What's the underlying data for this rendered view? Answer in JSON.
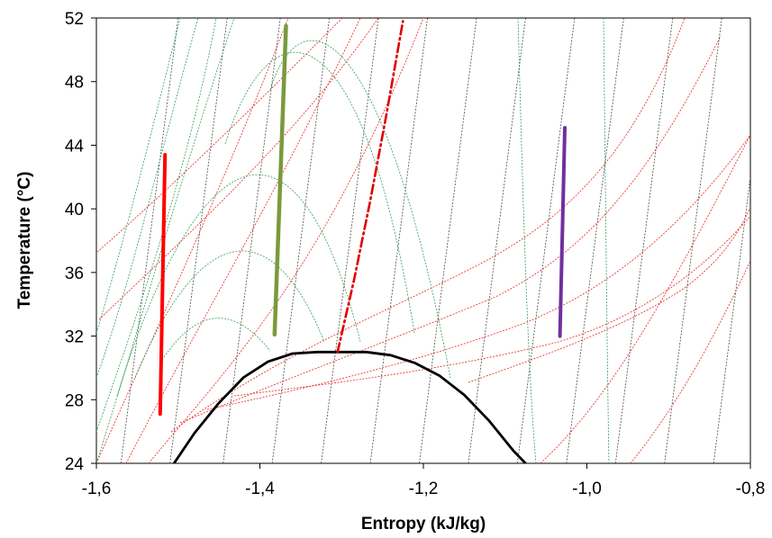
{
  "chart_data": {
    "type": "line",
    "title": "",
    "xlabel": "Entropy (kJ/kg)",
    "ylabel": "Temperature (°C)",
    "xlim": [
      -1.6,
      -0.8
    ],
    "ylim": [
      24,
      52
    ],
    "x_ticks": [
      -1.6,
      -1.4,
      -1.2,
      -1.0,
      -0.8
    ],
    "x_tick_labels": [
      "-1,6",
      "-1,4",
      "-1,2",
      "-1,0",
      "-0,8"
    ],
    "y_ticks": [
      24,
      28,
      32,
      36,
      40,
      44,
      48,
      52
    ],
    "y_tick_labels": [
      "24",
      "28",
      "32",
      "36",
      "40",
      "44",
      "48",
      "52"
    ],
    "grid": false,
    "legend": "none",
    "colors": {
      "dome": "#000000",
      "isotherm_red": "#e8251f",
      "isochore_green": "#2e9e55",
      "isenthalp_black": "#333333",
      "red_line": "#ff0000",
      "green_line": "#7a9a3c",
      "purple_line": "#7030a0",
      "critical_dashdot": "#e00000"
    },
    "series": [
      {
        "role": "saturation-dome",
        "x": [
          -1.505,
          -1.48,
          -1.45,
          -1.42,
          -1.39,
          -1.36,
          -1.33,
          -1.3,
          -1.27,
          -1.24,
          -1.21,
          -1.18,
          -1.15,
          -1.12,
          -1.09,
          -1.075
        ],
        "y": [
          24.0,
          25.9,
          27.8,
          29.4,
          30.4,
          30.9,
          31.0,
          31.0,
          31.0,
          30.8,
          30.3,
          29.5,
          28.3,
          26.7,
          24.8,
          24.0
        ]
      },
      {
        "role": "red-line",
        "x": [
          -1.522,
          -1.516
        ],
        "y": [
          27.1,
          43.4
        ]
      },
      {
        "role": "green-line",
        "x": [
          -1.382,
          -1.368
        ],
        "y": [
          32.1,
          51.5
        ]
      },
      {
        "role": "purple-line",
        "x": [
          -1.033,
          -1.027
        ],
        "y": [
          32.0,
          45.1
        ]
      },
      {
        "role": "dash-dot-line",
        "x": [
          -1.305,
          -1.285,
          -1.265,
          -1.245,
          -1.225
        ],
        "y": [
          31.0,
          35.5,
          40.5,
          46.0,
          51.8
        ]
      }
    ]
  }
}
